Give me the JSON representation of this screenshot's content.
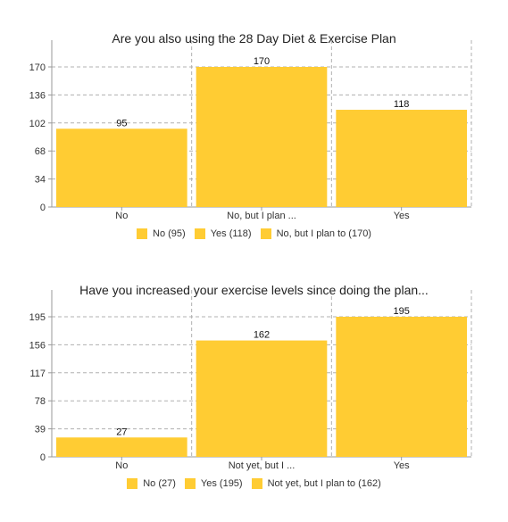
{
  "colors": {
    "bar": "#ffcc33",
    "grid": "#b0b0b0",
    "axis": "#999999",
    "text": "#222222"
  },
  "chart_data": [
    {
      "type": "bar",
      "title": "Are you also using the 28 Day Diet & Exercise Plan",
      "categories": [
        "No",
        "No, but I plan ...",
        "Yes"
      ],
      "values": [
        95,
        170,
        118
      ],
      "yticks": [
        0,
        34,
        68,
        102,
        136,
        170
      ],
      "ylim": [
        0,
        170
      ],
      "grid": true,
      "legend": [
        "No (95)",
        "Yes (118)",
        "No, but I plan to (170)"
      ],
      "legend_position": "bottom"
    },
    {
      "type": "bar",
      "title": "Have you increased your exercise levels since doing the plan...",
      "categories": [
        "No",
        "Not yet, but I ...",
        "Yes"
      ],
      "values": [
        27,
        162,
        195
      ],
      "yticks": [
        0,
        39,
        78,
        117,
        156,
        195
      ],
      "ylim": [
        0,
        195
      ],
      "grid": true,
      "legend": [
        "No (27)",
        "Yes (195)",
        "Not yet, but I plan to (162)"
      ],
      "legend_position": "bottom"
    }
  ]
}
